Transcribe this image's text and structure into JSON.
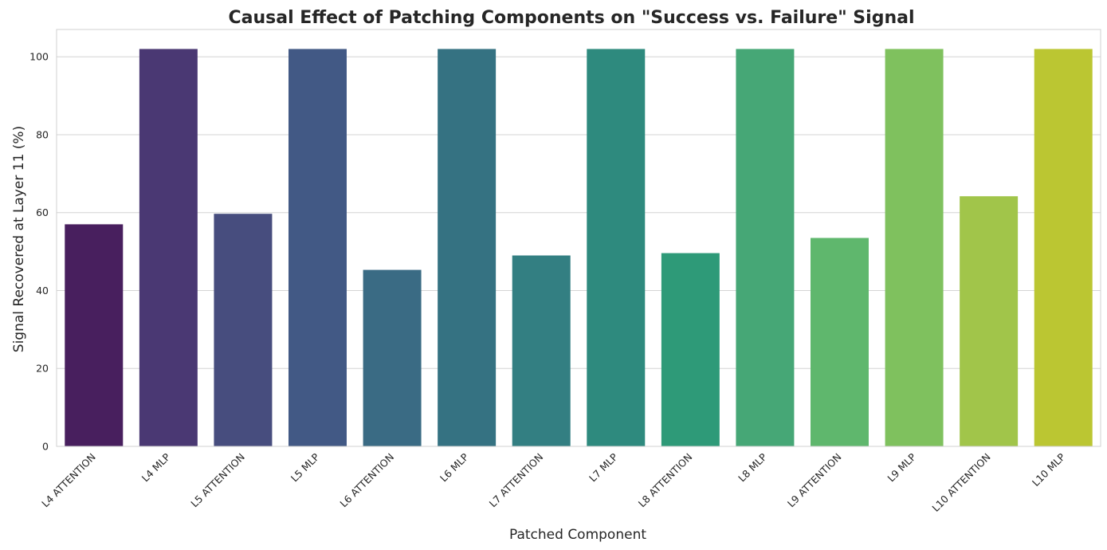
{
  "chart_data": {
    "type": "bar",
    "title": "Causal Effect of Patching Components on \"Success vs. Failure\" Signal",
    "xlabel": "Patched Component",
    "ylabel": "Signal Recovered at Layer 11 (%)",
    "ylim": [
      0,
      107
    ],
    "yticks": [
      0,
      20,
      40,
      60,
      80,
      100
    ],
    "grid": true,
    "categories": [
      "L4 ATTENTION",
      "L4 MLP",
      "L5 ATTENTION",
      "L5 MLP",
      "L6 ATTENTION",
      "L6 MLP",
      "L7 ATTENTION",
      "L7 MLP",
      "L8 ATTENTION",
      "L8 MLP",
      "L9 ATTENTION",
      "L9 MLP",
      "L10 ATTENTION",
      "L10 MLP"
    ],
    "values": [
      57.0,
      102.0,
      59.7,
      102.0,
      45.3,
      102.0,
      49.0,
      102.0,
      49.6,
      102.0,
      53.5,
      102.0,
      64.2,
      102.0
    ],
    "colors": [
      "#481f5e",
      "#4a3873",
      "#474d7e",
      "#425985",
      "#3a6b84",
      "#357282",
      "#337f82",
      "#2e8a7e",
      "#2e9a78",
      "#46a776",
      "#5fb76d",
      "#7fc15e",
      "#a1c54a",
      "#bbc632"
    ]
  }
}
